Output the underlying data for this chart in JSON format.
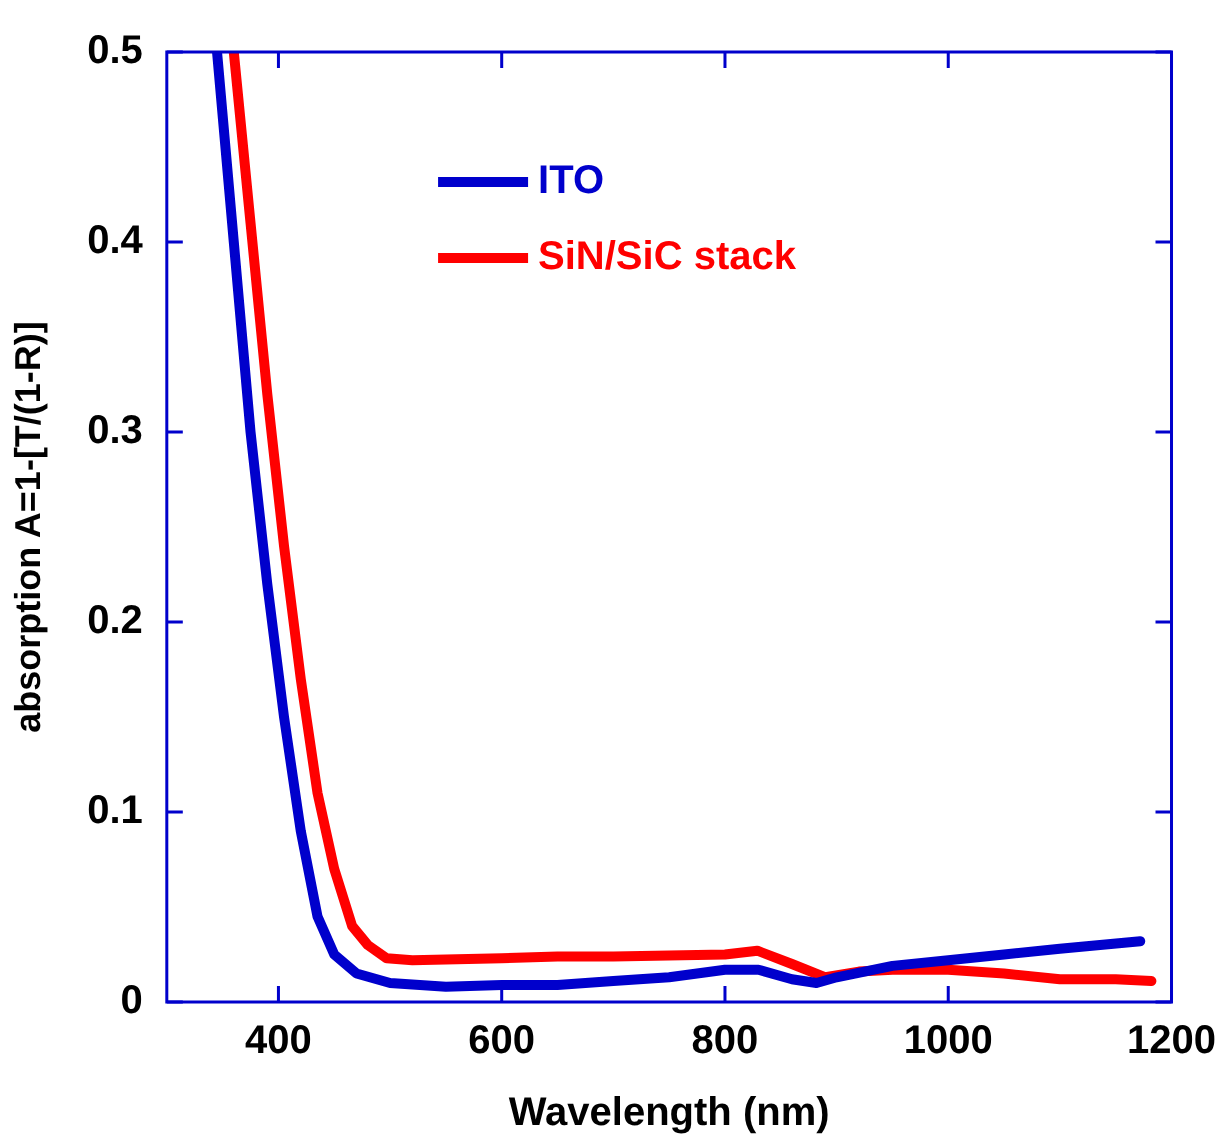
{
  "chart_data": {
    "type": "line",
    "xlabel": "Wavelength (nm)",
    "ylabel": "absorption A=1-[T/(1-R)]",
    "xlim": [
      300,
      1200
    ],
    "xticks": [
      400,
      600,
      800,
      1000,
      1200
    ],
    "ylim": [
      0,
      0.5
    ],
    "yticks": [
      0,
      0.1,
      0.2,
      0.3,
      0.4,
      0.5
    ],
    "grid": false,
    "legend": "top left",
    "marker": "none",
    "line_style": "solid",
    "series": [
      {
        "name": "ITO",
        "color": "#0000cc",
        "x": [
          345,
          360,
          375,
          390,
          405,
          420,
          435,
          450,
          470,
          500,
          550,
          600,
          650,
          700,
          750,
          800,
          830,
          860,
          882,
          900,
          950,
          1000,
          1050,
          1100,
          1172
        ],
        "values": [
          0.5,
          0.4,
          0.3,
          0.22,
          0.15,
          0.09,
          0.045,
          0.025,
          0.015,
          0.01,
          0.008,
          0.009,
          0.009,
          0.011,
          0.013,
          0.017,
          0.017,
          0.012,
          0.01,
          0.013,
          0.019,
          0.022,
          0.025,
          0.028,
          0.032
        ]
      },
      {
        "name": "SiN/SiC stack",
        "color": "#ff0000",
        "x": [
          360,
          375,
          390,
          405,
          420,
          435,
          450,
          466,
          480,
          497,
          520,
          600,
          650,
          700,
          800,
          829,
          860,
          890,
          920,
          950,
          1000,
          1050,
          1100,
          1150,
          1182
        ],
        "values": [
          0.5,
          0.41,
          0.32,
          0.24,
          0.17,
          0.11,
          0.07,
          0.04,
          0.03,
          0.023,
          0.022,
          0.023,
          0.024,
          0.024,
          0.025,
          0.027,
          0.02,
          0.013,
          0.016,
          0.017,
          0.017,
          0.015,
          0.012,
          0.012,
          0.011
        ]
      }
    ]
  }
}
